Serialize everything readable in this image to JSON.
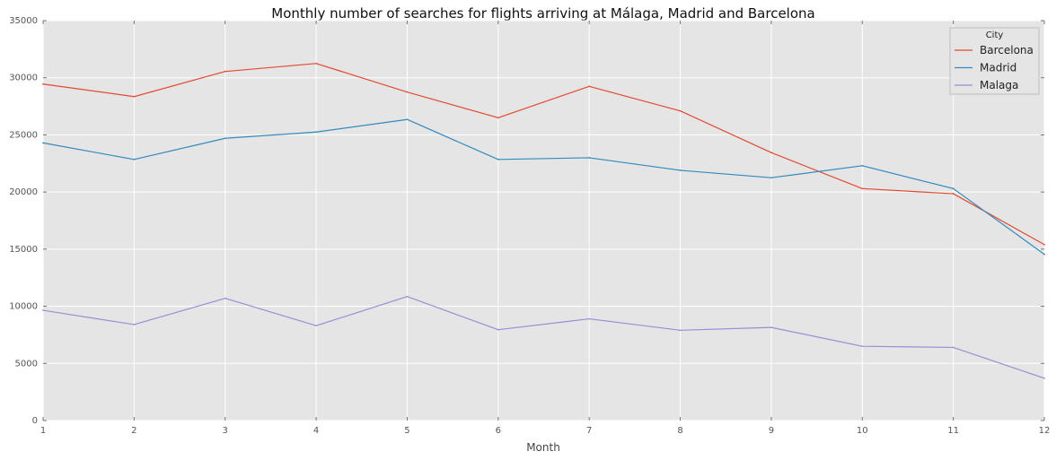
{
  "chart_data": {
    "type": "line",
    "title": "Monthly number of searches for flights arriving at Málaga, Madrid and Barcelona",
    "xlabel": "Month",
    "ylabel": "",
    "x": [
      1,
      2,
      3,
      4,
      5,
      6,
      7,
      8,
      9,
      10,
      11,
      12
    ],
    "x_ticks": [
      "1",
      "2",
      "3",
      "4",
      "5",
      "6",
      "7",
      "8",
      "9",
      "10",
      "11",
      "12"
    ],
    "xlim": [
      1,
      12
    ],
    "ylim": [
      0,
      35000
    ],
    "y_ticks": [
      0,
      5000,
      10000,
      15000,
      20000,
      25000,
      30000,
      35000
    ],
    "grid": true,
    "legend": {
      "title": "City",
      "placement": "top-right"
    },
    "background_color": "#e5e5e5",
    "grid_color": "#ffffff",
    "series": [
      {
        "name": "Barcelona",
        "color": "#e24a33",
        "values": [
          29450,
          28350,
          30550,
          31250,
          28750,
          26500,
          29250,
          27100,
          23450,
          20300,
          19850,
          15400
        ]
      },
      {
        "name": "Madrid",
        "color": "#348abd",
        "values": [
          24300,
          22850,
          24700,
          25250,
          26350,
          22850,
          23000,
          21900,
          21250,
          22300,
          20300,
          14550
        ]
      },
      {
        "name": "Malaga",
        "color": "#988ed5",
        "values": [
          9650,
          8400,
          10700,
          8300,
          10850,
          7950,
          8900,
          7900,
          8150,
          6500,
          6400,
          3700
        ]
      }
    ]
  }
}
